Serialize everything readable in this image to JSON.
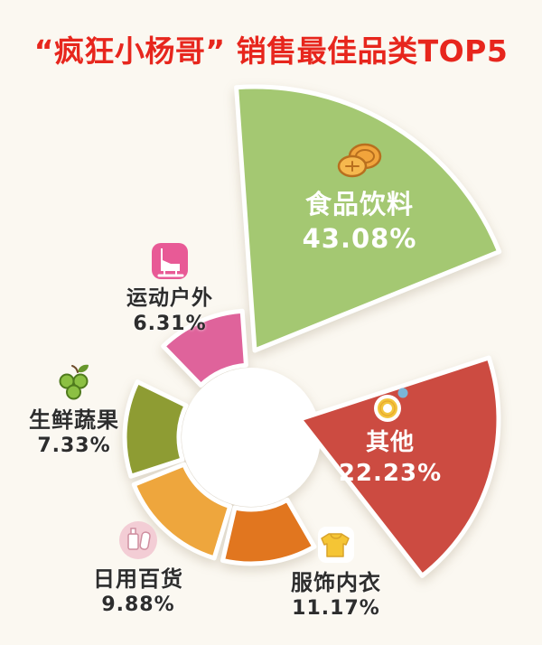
{
  "title": "“疯狂小杨哥” 销售最佳品类TOP5",
  "chart_data": {
    "type": "pie",
    "title": "“疯狂小杨哥” 销售最佳品类TOP5",
    "legend": "none",
    "donut": true,
    "unit": "%",
    "segments": [
      {
        "label": "食品饮料",
        "value": 43.08,
        "display": "43.08%",
        "color": "#a4c872",
        "icon": "food-drink-icon",
        "exploded": true,
        "text_style": "white-on-slice"
      },
      {
        "label": "其他",
        "value": 22.23,
        "display": "22.23%",
        "color": "#cc4b41",
        "icon": "donut-float-icon",
        "exploded": true,
        "text_style": "white-on-slice"
      },
      {
        "label": "服饰内衣",
        "value": 11.17,
        "display": "11.17%",
        "color": "#e1761f",
        "icon": "sweater-icon",
        "exploded": false,
        "text_style": "dark-outside"
      },
      {
        "label": "日用百货",
        "value": 9.88,
        "display": "9.88%",
        "color": "#eea63d",
        "icon": "toiletries-icon",
        "exploded": false,
        "text_style": "dark-outside"
      },
      {
        "label": "生鲜蔬果",
        "value": 7.33,
        "display": "7.33%",
        "color": "#8e9c33",
        "icon": "grapes-icon",
        "exploded": false,
        "text_style": "dark-outside"
      },
      {
        "label": "运动户外",
        "value": 6.31,
        "display": "6.31%",
        "color": "#df639b",
        "icon": "ice-skate-icon",
        "exploded": false,
        "text_style": "dark-outside"
      }
    ],
    "colors": {
      "title": "#e7261d",
      "background": "#fbf8f1",
      "dark_text": "#2d2d2d",
      "light_text": "#ffffff",
      "slice_separator": "#ffffff"
    },
    "geometry": {
      "center": [
        278,
        484
      ],
      "inner_radius": 80,
      "outer_radius": 140,
      "wedges": [
        {
          "index": 0,
          "type": "wedge",
          "start": -4,
          "end": 68,
          "tip": [
            282,
            388
          ],
          "radius": 292
        },
        {
          "index": 1,
          "type": "wedge",
          "start": 72,
          "end": 142,
          "tip": [
            332,
            464
          ],
          "radius": 220
        },
        {
          "index": 2,
          "type": "ring",
          "start": 150,
          "end": 193
        },
        {
          "index": 3,
          "type": "ring",
          "start": 197,
          "end": 248
        },
        {
          "index": 4,
          "type": "ring",
          "start": 252,
          "end": 296
        },
        {
          "index": 5,
          "type": "ring",
          "start": 316,
          "end": 356
        }
      ]
    }
  }
}
